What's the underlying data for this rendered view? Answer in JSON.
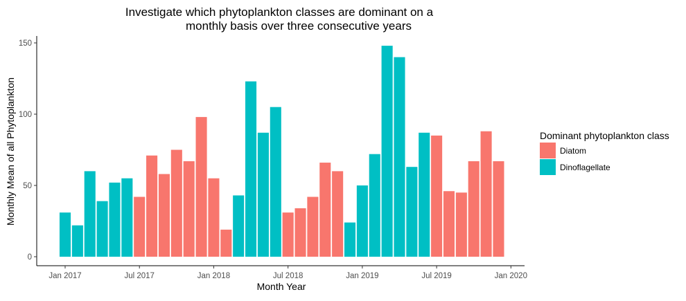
{
  "chart_data": {
    "type": "bar",
    "title_lines": [
      "Investigate which phytoplankton classes are dominant on a",
      "monthly basis over three consecutive years"
    ],
    "xlabel": "Month Year",
    "ylabel": "Monthly Mean of all Phytoplankton",
    "ylim": [
      0,
      155
    ],
    "y_ticks": [
      0,
      50,
      100,
      150
    ],
    "x_ticks": [
      {
        "label": "Jan 2017",
        "month_index": 0
      },
      {
        "label": "Jul 2017",
        "month_index": 6
      },
      {
        "label": "Jan 2018",
        "month_index": 12
      },
      {
        "label": "Jul 2018",
        "month_index": 18
      },
      {
        "label": "Jan 2019",
        "month_index": 24
      },
      {
        "label": "Jul 2019",
        "month_index": 30
      },
      {
        "label": "Jan 2020",
        "month_index": 36
      }
    ],
    "legend": {
      "title": "Dominant phytoplankton class",
      "position": "right",
      "items": [
        {
          "label": "Diatom",
          "color": "#F8766D"
        },
        {
          "label": "Dinoflagellate",
          "color": "#00BFC4"
        }
      ]
    },
    "categories": [
      "Jan 2017",
      "Feb 2017",
      "Mar 2017",
      "Apr 2017",
      "May 2017",
      "Jun 2017",
      "Jul 2017",
      "Aug 2017",
      "Sep 2017",
      "Oct 2017",
      "Nov 2017",
      "Dec 2017",
      "Jan 2018",
      "Feb 2018",
      "Mar 2018",
      "Apr 2018",
      "May 2018",
      "Jun 2018",
      "Jul 2018",
      "Aug 2018",
      "Sep 2018",
      "Oct 2018",
      "Nov 2018",
      "Dec 2018",
      "Jan 2019",
      "Feb 2019",
      "Mar 2019",
      "Apr 2019",
      "May 2019",
      "Jun 2019",
      "Jul 2019",
      "Aug 2019",
      "Sep 2019",
      "Oct 2019",
      "Nov 2019",
      "Dec 2019"
    ],
    "values": [
      31,
      22,
      60,
      39,
      52,
      55,
      42,
      71,
      58,
      75,
      67,
      98,
      55,
      19,
      43,
      123,
      87,
      105,
      31,
      34,
      42,
      66,
      60,
      24,
      50,
      72,
      148,
      140,
      63,
      87,
      85,
      46,
      45,
      67,
      88,
      67
    ],
    "classes": [
      "Dinoflagellate",
      "Dinoflagellate",
      "Dinoflagellate",
      "Dinoflagellate",
      "Dinoflagellate",
      "Dinoflagellate",
      "Diatom",
      "Diatom",
      "Diatom",
      "Diatom",
      "Diatom",
      "Diatom",
      "Diatom",
      "Diatom",
      "Dinoflagellate",
      "Dinoflagellate",
      "Dinoflagellate",
      "Dinoflagellate",
      "Diatom",
      "Diatom",
      "Diatom",
      "Diatom",
      "Diatom",
      "Dinoflagellate",
      "Dinoflagellate",
      "Dinoflagellate",
      "Dinoflagellate",
      "Dinoflagellate",
      "Dinoflagellate",
      "Dinoflagellate",
      "Diatom",
      "Diatom",
      "Diatom",
      "Diatom",
      "Diatom",
      "Diatom"
    ],
    "grid": false
  }
}
